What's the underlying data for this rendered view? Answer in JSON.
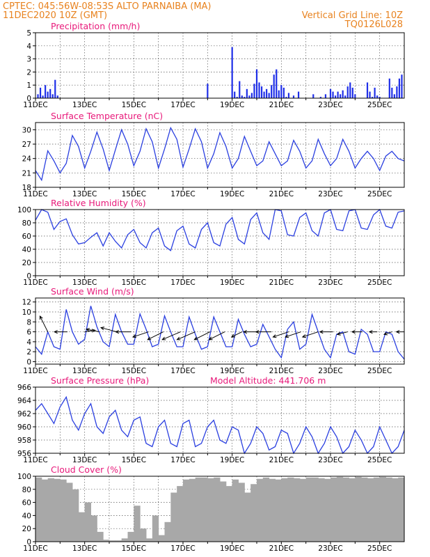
{
  "header": {
    "line1_left": "CPTEC:  045:56W-08:53S  ALTO PARNAIBA (MA)",
    "line2_left": "11DEC2020 10Z (GMT)",
    "line2_right": "Vertical Grid Line: 10Z",
    "line3_right": "TQ0126L028"
  },
  "colors": {
    "header_text": "#e8821e",
    "panel_title": "#e8197a",
    "series_line": "#2a3fe0",
    "precip_bars": "#1f2fe8",
    "cloud_bars": "#a8a8a8",
    "grid": "#555555"
  },
  "x_axis": {
    "tick_labels": [
      "11DEC",
      "13DEC",
      "15DEC",
      "17DEC",
      "19DEC",
      "21DEC",
      "23DEC",
      "25DEC"
    ],
    "start_day": 11,
    "end_day": 26,
    "vertical_grid_every_days": 1
  },
  "chart_data": [
    {
      "id": "precip",
      "type": "bar",
      "title": "Precipitation (mm/h)",
      "ylim": [
        0,
        5
      ],
      "yticks": [
        0,
        1,
        2,
        3,
        4,
        5
      ],
      "grid": true,
      "x": [
        11.1,
        11.2,
        11.3,
        11.4,
        11.5,
        11.6,
        11.7,
        11.8,
        11.9,
        18.0,
        19.0,
        19.1,
        19.2,
        19.3,
        19.4,
        19.5,
        19.6,
        19.7,
        19.8,
        19.9,
        20.0,
        20.1,
        20.2,
        20.3,
        20.4,
        20.5,
        20.6,
        20.7,
        20.8,
        20.9,
        21.0,
        21.1,
        21.2,
        21.3,
        21.5,
        21.7,
        22.3,
        22.6,
        22.8,
        23.0,
        23.1,
        23.2,
        23.3,
        23.4,
        23.5,
        23.6,
        23.7,
        23.8,
        23.9,
        24.0,
        24.5,
        24.6,
        24.7,
        24.8,
        24.9,
        25.0,
        25.4,
        25.5,
        25.6,
        25.7,
        25.8,
        25.9
      ],
      "values": [
        0.3,
        0.8,
        0.2,
        1.0,
        0.5,
        0.7,
        0.3,
        1.4,
        0.2,
        1.1,
        3.9,
        0.5,
        0.1,
        1.3,
        0.2,
        0.1,
        0.7,
        0.2,
        0.4,
        1.1,
        2.2,
        1.2,
        0.9,
        0.5,
        0.7,
        0.4,
        1.0,
        1.8,
        2.2,
        0.6,
        1.0,
        0.8,
        0.1,
        0.4,
        0.2,
        0.5,
        0.3,
        0.1,
        0.3,
        0.7,
        0.5,
        0.2,
        0.5,
        0.3,
        0.6,
        0.2,
        0.9,
        1.2,
        0.8,
        0.3,
        1.2,
        0.5,
        0.1,
        0.8,
        0.2,
        0.1,
        1.5,
        0.8,
        0.3,
        0.9,
        1.5,
        1.8
      ]
    },
    {
      "id": "temp",
      "type": "line",
      "title": "Surface Temperature (nC)",
      "ylim": [
        18,
        31.5
      ],
      "yticks": [
        18,
        21,
        24,
        27,
        30
      ],
      "grid": true,
      "x": [
        11.0,
        11.25,
        11.5,
        11.75,
        12.0,
        12.25,
        12.5,
        12.75,
        13.0,
        13.25,
        13.5,
        13.75,
        14.0,
        14.25,
        14.5,
        14.75,
        15.0,
        15.25,
        15.5,
        15.75,
        16.0,
        16.25,
        16.5,
        16.75,
        17.0,
        17.25,
        17.5,
        17.75,
        18.0,
        18.25,
        18.5,
        18.75,
        19.0,
        19.25,
        19.5,
        19.75,
        20.0,
        20.25,
        20.5,
        20.75,
        21.0,
        21.25,
        21.5,
        21.75,
        22.0,
        22.25,
        22.5,
        22.75,
        23.0,
        23.25,
        23.5,
        23.75,
        24.0,
        24.25,
        24.5,
        24.75,
        25.0,
        25.25,
        25.5,
        25.75,
        26.0
      ],
      "values": [
        21.5,
        19.5,
        25.6,
        23.5,
        21.0,
        23.0,
        28.8,
        26.5,
        22.0,
        25.5,
        29.5,
        26.0,
        21.5,
        25.8,
        30.0,
        27.0,
        22.5,
        25.5,
        30.2,
        27.5,
        22.0,
        26.0,
        30.4,
        28.0,
        22.2,
        26.0,
        30.2,
        27.5,
        22.0,
        25.0,
        29.4,
        26.5,
        22.0,
        24.0,
        28.6,
        25.5,
        22.5,
        23.5,
        27.5,
        25.0,
        22.5,
        23.5,
        27.8,
        25.5,
        22.0,
        23.5,
        28.0,
        25.0,
        22.5,
        24.0,
        28.0,
        25.5,
        22.0,
        24.0,
        25.5,
        24.0,
        21.5,
        24.5,
        25.5,
        24.0,
        23.5
      ]
    },
    {
      "id": "rh",
      "type": "line",
      "title": "Relative Humidity (%)",
      "ylim": [
        0,
        100
      ],
      "yticks": [
        0,
        20,
        40,
        60,
        80,
        100
      ],
      "grid": true,
      "x": [
        11.0,
        11.25,
        11.5,
        11.75,
        12.0,
        12.25,
        12.5,
        12.75,
        13.0,
        13.25,
        13.5,
        13.75,
        14.0,
        14.25,
        14.5,
        14.75,
        15.0,
        15.25,
        15.5,
        15.75,
        16.0,
        16.25,
        16.5,
        16.75,
        17.0,
        17.25,
        17.5,
        17.75,
        18.0,
        18.25,
        18.5,
        18.75,
        19.0,
        19.25,
        19.5,
        19.75,
        20.0,
        20.25,
        20.5,
        20.75,
        21.0,
        21.25,
        21.5,
        21.75,
        22.0,
        22.25,
        22.5,
        22.75,
        23.0,
        23.25,
        23.5,
        23.75,
        24.0,
        24.25,
        24.5,
        24.75,
        25.0,
        25.25,
        25.5,
        25.75,
        26.0
      ],
      "values": [
        84,
        100,
        96,
        70,
        82,
        86,
        62,
        48,
        50,
        58,
        65,
        45,
        65,
        52,
        42,
        62,
        70,
        50,
        42,
        65,
        72,
        45,
        38,
        68,
        75,
        48,
        42,
        70,
        80,
        50,
        45,
        78,
        88,
        55,
        48,
        85,
        95,
        65,
        55,
        100,
        98,
        62,
        60,
        88,
        95,
        68,
        60,
        95,
        100,
        70,
        68,
        98,
        100,
        72,
        70,
        92,
        100,
        75,
        72,
        96,
        98
      ]
    },
    {
      "id": "wind",
      "type": "line",
      "title": "Surface Wind (m/s)",
      "ylim": [
        -0.5,
        12.8
      ],
      "yticks": [
        0,
        2,
        4,
        6,
        8,
        10,
        12
      ],
      "grid": true,
      "x": [
        11.0,
        11.25,
        11.5,
        11.75,
        12.0,
        12.25,
        12.5,
        12.75,
        13.0,
        13.25,
        13.5,
        13.75,
        14.0,
        14.25,
        14.5,
        14.75,
        15.0,
        15.25,
        15.5,
        15.75,
        16.0,
        16.25,
        16.5,
        16.75,
        17.0,
        17.25,
        17.5,
        17.75,
        18.0,
        18.25,
        18.5,
        18.75,
        19.0,
        19.25,
        19.5,
        19.75,
        20.0,
        20.25,
        20.5,
        20.75,
        21.0,
        21.25,
        21.5,
        21.75,
        22.0,
        22.25,
        22.5,
        22.75,
        23.0,
        23.25,
        23.5,
        23.75,
        24.0,
        24.25,
        24.5,
        24.75,
        25.0,
        25.25,
        25.5,
        25.75,
        26.0
      ],
      "values": [
        3.0,
        1.5,
        6.0,
        3.0,
        2.5,
        10.5,
        6.0,
        3.5,
        4.5,
        11.2,
        7.0,
        4.0,
        3.0,
        9.5,
        6.0,
        3.5,
        3.5,
        9.6,
        6.5,
        3.0,
        3.5,
        9.2,
        6.0,
        3.0,
        3.0,
        9.0,
        5.5,
        2.5,
        3.0,
        9.0,
        6.0,
        3.0,
        3.0,
        8.5,
        5.5,
        3.0,
        3.5,
        7.5,
        5.0,
        2.5,
        0.8,
        6.5,
        8.0,
        2.5,
        3.5,
        9.5,
        6.0,
        2.5,
        0.8,
        5.5,
        6.0,
        2.0,
        1.5,
        6.5,
        5.5,
        2.0,
        2.0,
        6.0,
        5.5,
        2.0,
        0.5
      ],
      "barbs": {
        "x": [
          11.5,
          12.3,
          13.0,
          13.6,
          14.3,
          14.9,
          15.6,
          16.2,
          16.9,
          17.5,
          18.1,
          18.7,
          19.4,
          20.0,
          20.6,
          21.3,
          21.8,
          22.5,
          23.1,
          23.7,
          24.3,
          24.9,
          25.5,
          26.0
        ],
        "u_ms": [
          -1.5,
          -2.5,
          2.0,
          -2.5,
          -3.0,
          -3.0,
          -3.0,
          -3.0,
          -3.5,
          -3.5,
          -3.0,
          -3.0,
          -2.0,
          -2.5,
          -3.0,
          -3.0,
          -3.0,
          -3.0,
          -2.5,
          -2.0,
          -2.0,
          -1.5,
          -1.5,
          -1.5
        ],
        "v_ms": [
          3.0,
          0.0,
          0.3,
          0.5,
          0.8,
          0.0,
          -1.0,
          -1.5,
          -1.5,
          -1.5,
          -1.5,
          -1.5,
          -1.0,
          0.0,
          0.0,
          -1.0,
          -1.0,
          -1.0,
          0.0,
          -0.5,
          0.0,
          0.0,
          -0.5,
          0.0
        ]
      }
    },
    {
      "id": "pressure",
      "type": "line",
      "title": "Surface Pressure (hPa)",
      "annotation": "Model Altitude: 441.706 m",
      "ylim": [
        956,
        966
      ],
      "yticks": [
        956,
        958,
        960,
        962,
        964,
        966
      ],
      "grid": true,
      "x": [
        11.0,
        11.25,
        11.5,
        11.75,
        12.0,
        12.25,
        12.5,
        12.75,
        13.0,
        13.25,
        13.5,
        13.75,
        14.0,
        14.25,
        14.5,
        14.75,
        15.0,
        15.25,
        15.5,
        15.75,
        16.0,
        16.25,
        16.5,
        16.75,
        17.0,
        17.25,
        17.5,
        17.75,
        18.0,
        18.25,
        18.5,
        18.75,
        19.0,
        19.25,
        19.5,
        19.75,
        20.0,
        20.25,
        20.5,
        20.75,
        21.0,
        21.25,
        21.5,
        21.75,
        22.0,
        22.25,
        22.5,
        22.75,
        23.0,
        23.25,
        23.5,
        23.75,
        24.0,
        24.25,
        24.5,
        24.75,
        25.0,
        25.25,
        25.5,
        25.75,
        26.0
      ],
      "values": [
        962.5,
        963.5,
        962.0,
        960.5,
        963.0,
        964.5,
        961.0,
        959.5,
        962.0,
        963.5,
        960.0,
        959.0,
        961.5,
        962.5,
        959.5,
        958.5,
        961.0,
        961.5,
        957.5,
        957.0,
        960.0,
        961.0,
        957.5,
        957.0,
        960.5,
        961.0,
        957.0,
        957.5,
        960.0,
        961.0,
        958.0,
        957.5,
        960.0,
        959.5,
        956.0,
        957.5,
        960.0,
        959.0,
        956.5,
        957.0,
        959.5,
        959.0,
        956.0,
        957.5,
        960.0,
        958.5,
        956.0,
        957.5,
        960.0,
        958.5,
        956.0,
        957.0,
        959.5,
        958.0,
        956.0,
        957.0,
        960.0,
        958.0,
        956.0,
        957.0,
        959.5
      ]
    },
    {
      "id": "cloud",
      "type": "bar",
      "title": "Cloud Cover (%)",
      "ylim": [
        0,
        100
      ],
      "yticks": [
        0,
        20,
        40,
        60,
        80,
        100
      ],
      "grid": true,
      "x": [
        11.0,
        11.25,
        11.5,
        11.75,
        12.0,
        12.25,
        12.5,
        12.75,
        13.0,
        13.25,
        13.5,
        13.75,
        14.0,
        14.25,
        14.5,
        14.75,
        15.0,
        15.25,
        15.5,
        15.75,
        16.0,
        16.25,
        16.5,
        16.75,
        17.0,
        17.25,
        17.5,
        17.75,
        18.0,
        18.25,
        18.5,
        18.75,
        19.0,
        19.25,
        19.5,
        19.75,
        20.0,
        20.25,
        20.5,
        20.75,
        21.0,
        21.25,
        21.5,
        21.75,
        22.0,
        22.25,
        22.5,
        22.75,
        23.0,
        23.25,
        23.5,
        23.75,
        24.0,
        24.25,
        24.5,
        24.75,
        25.0,
        25.25,
        25.5,
        25.75,
        26.0
      ],
      "values": [
        98,
        95,
        97,
        96,
        95,
        90,
        80,
        45,
        60,
        40,
        15,
        3,
        2,
        2,
        5,
        15,
        55,
        20,
        5,
        40,
        10,
        30,
        75,
        85,
        95,
        96,
        98,
        98,
        97,
        98,
        92,
        85,
        95,
        90,
        75,
        88,
        96,
        98,
        96,
        95,
        97,
        98,
        97,
        96,
        98,
        98,
        97,
        96,
        98,
        99,
        98,
        97,
        99,
        98,
        97,
        98,
        99,
        98,
        97,
        98,
        98
      ]
    }
  ]
}
